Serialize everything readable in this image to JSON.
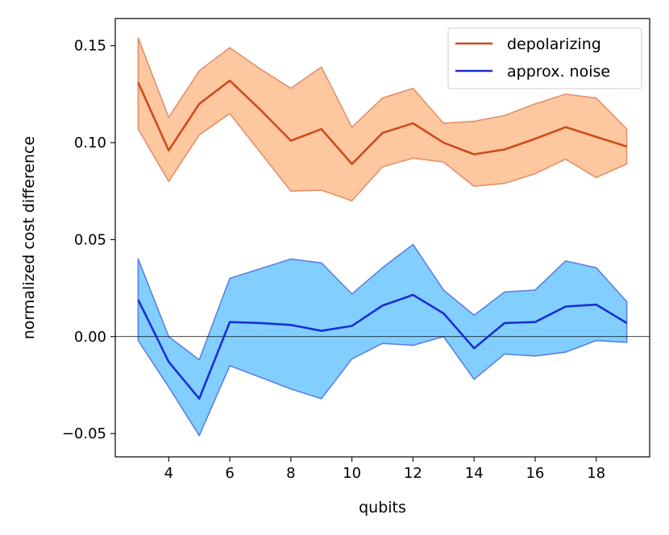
{
  "chart_data": {
    "type": "line",
    "title": "",
    "xlabel": "qubits",
    "ylabel": "normalized cost difference",
    "xlim": [
      2.25,
      19.75
    ],
    "ylim": [
      -0.062,
      0.164
    ],
    "xticks": [
      4,
      6,
      8,
      10,
      12,
      14,
      16,
      18
    ],
    "xtick_labels": [
      "4",
      "6",
      "8",
      "10",
      "12",
      "14",
      "16",
      "18"
    ],
    "yticks": [
      -0.05,
      0.0,
      0.05,
      0.1,
      0.15
    ],
    "ytick_labels": [
      "−0.05",
      "0.00",
      "0.05",
      "0.10",
      "0.15"
    ],
    "grid": false,
    "zero_line": true,
    "legend_position": "top-right",
    "x": [
      3,
      4,
      5,
      6,
      7,
      8,
      9,
      10,
      11,
      12,
      13,
      14,
      15,
      16,
      17,
      18,
      19
    ],
    "series": [
      {
        "name": "depolarizing",
        "color": "#cc4c1c",
        "band_fill": "#fdc7a0",
        "band_edge": "#e3906a",
        "values": [
          0.131,
          0.096,
          0.12,
          0.132,
          0.117,
          0.101,
          0.107,
          0.089,
          0.105,
          0.11,
          0.1,
          0.094,
          0.0965,
          0.102,
          0.108,
          0.103,
          0.098
        ],
        "upper": [
          0.154,
          0.113,
          0.137,
          0.149,
          0.138,
          0.128,
          0.139,
          0.108,
          0.123,
          0.128,
          0.11,
          0.111,
          0.114,
          0.12,
          0.125,
          0.123,
          0.107
        ],
        "lower": [
          0.107,
          0.08,
          0.104,
          0.115,
          0.095,
          0.075,
          0.0755,
          0.07,
          0.0875,
          0.092,
          0.09,
          0.0775,
          0.079,
          0.084,
          0.0915,
          0.082,
          0.089
        ]
      },
      {
        "name": "approx. noise",
        "color": "#1a2ed4",
        "band_fill": "#82cfff",
        "band_edge": "#5b7fe6",
        "values": [
          0.019,
          -0.013,
          -0.032,
          0.0075,
          0.007,
          0.006,
          0.003,
          0.0055,
          0.016,
          0.0215,
          0.012,
          -0.006,
          0.007,
          0.0075,
          0.0155,
          0.0165,
          0.007
        ],
        "upper": [
          0.04,
          0.0,
          -0.012,
          0.03,
          0.035,
          0.04,
          0.038,
          0.022,
          0.0355,
          0.0475,
          0.024,
          0.011,
          0.023,
          0.024,
          0.039,
          0.0355,
          0.018
        ],
        "lower": [
          -0.002,
          -0.026,
          -0.051,
          -0.015,
          -0.021,
          -0.027,
          -0.032,
          -0.0115,
          -0.0035,
          -0.0045,
          0.0,
          -0.022,
          -0.009,
          -0.01,
          -0.008,
          -0.002,
          -0.003
        ]
      }
    ]
  }
}
